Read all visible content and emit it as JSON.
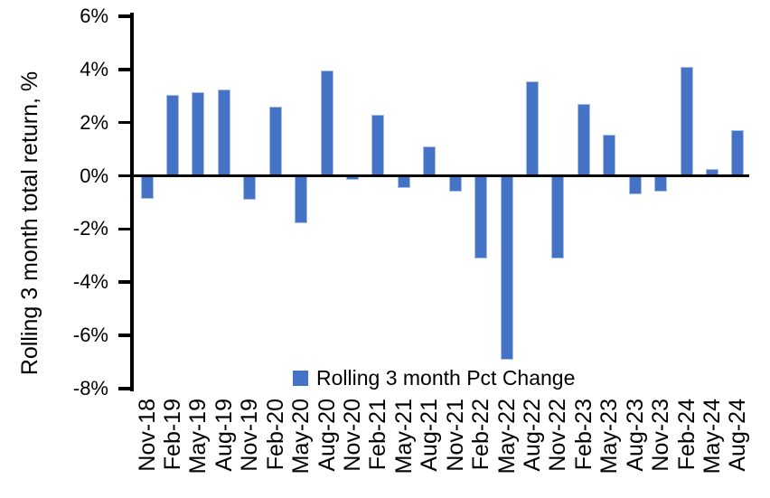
{
  "chart_data": {
    "type": "bar",
    "title": "",
    "xlabel": "",
    "ylabel": "Rolling 3 month total return, %",
    "categories": [
      "Nov-18",
      "Feb-19",
      "May-19",
      "Aug-19",
      "Nov-19",
      "Feb-20",
      "May-20",
      "Aug-20",
      "Nov-20",
      "Feb-21",
      "May-21",
      "Aug-21",
      "Nov-21",
      "Feb-22",
      "May-22",
      "Aug-22",
      "Nov-22",
      "Feb-23",
      "May-23",
      "Aug-23",
      "Nov-23",
      "Feb-24",
      "May-24",
      "Aug-24"
    ],
    "values": [
      -0.85,
      3.05,
      3.15,
      3.25,
      -0.9,
      2.6,
      -1.8,
      3.95,
      -0.15,
      2.3,
      -0.45,
      1.1,
      -0.6,
      -3.1,
      -6.9,
      3.55,
      -3.1,
      2.7,
      1.55,
      -0.7,
      -0.6,
      4.1,
      0.25,
      1.7
    ],
    "ylim": [
      -8,
      6
    ],
    "yticks": [
      {
        "value": 6,
        "label": "6%"
      },
      {
        "value": 4,
        "label": "4%"
      },
      {
        "value": 2,
        "label": "2%"
      },
      {
        "value": 0,
        "label": "0%"
      },
      {
        "value": -2,
        "label": "-2%"
      },
      {
        "value": -4,
        "label": "-4%"
      },
      {
        "value": -6,
        "label": "-6%"
      },
      {
        "value": -8,
        "label": "-8%"
      }
    ],
    "grid": false,
    "legend": {
      "label": "Rolling 3 month Pct Change",
      "position": "bottom-center"
    },
    "colors": {
      "bar_fill": "#4472C4",
      "bar_border": "#A6BFE7",
      "axis": "#000000",
      "text": "#000000"
    }
  }
}
